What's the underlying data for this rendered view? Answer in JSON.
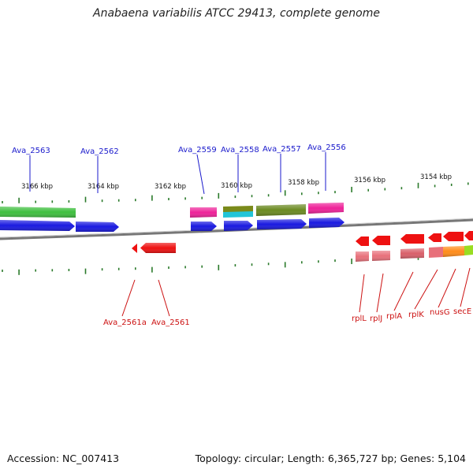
{
  "title": "Anabaena variabilis ATCC 29413, complete genome",
  "footer": {
    "accession": "Accession: NC_007413",
    "summary": "Topology: circular; Length: 6,365,727 bp; Genes: 5,104"
  },
  "colors": {
    "forward_label": "#1a1acc",
    "reverse_label": "#cc1111",
    "tick": "#2a7a2a",
    "backbone": "#888888"
  },
  "upper_labels": [
    "Ava_2563",
    "Ava_2562",
    "Ava_2559",
    "Ava_2558",
    "Ava_2557",
    "Ava_2556"
  ],
  "lower_labels": [
    "Ava_2561a",
    "Ava_2561",
    "rplL",
    "rplJ",
    "rplA",
    "rplK",
    "nusG",
    "secE"
  ],
  "scale_labels": [
    "3166 kbp",
    "3164 kbp",
    "3162 kbp",
    "3160 kbp",
    "3158 kbp",
    "3156 kbp",
    "3154 kbp"
  ]
}
